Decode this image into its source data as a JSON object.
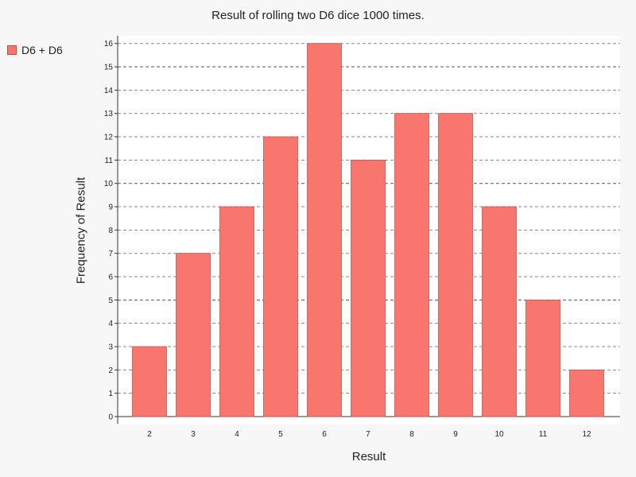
{
  "chart_data": {
    "type": "bar",
    "title": "Result of rolling two D6 dice 1000 times.",
    "xlabel": "Result",
    "ylabel": "Frequency of Result",
    "categories": [
      "2",
      "3",
      "4",
      "5",
      "6",
      "7",
      "8",
      "9",
      "10",
      "11",
      "12"
    ],
    "series": [
      {
        "name": "D6 + D6",
        "values": [
          3,
          7,
          9,
          12,
          16,
          11,
          13,
          13,
          9,
          5,
          2
        ],
        "color": "#f8766d"
      }
    ],
    "ylim": [
      0,
      16
    ],
    "yticks": [
      "0",
      "1",
      "2",
      "3",
      "4",
      "5",
      "6",
      "7",
      "8",
      "9",
      "10",
      "11",
      "12",
      "13",
      "14",
      "15",
      "16"
    ],
    "grid": true,
    "legend_position": "top-left"
  }
}
